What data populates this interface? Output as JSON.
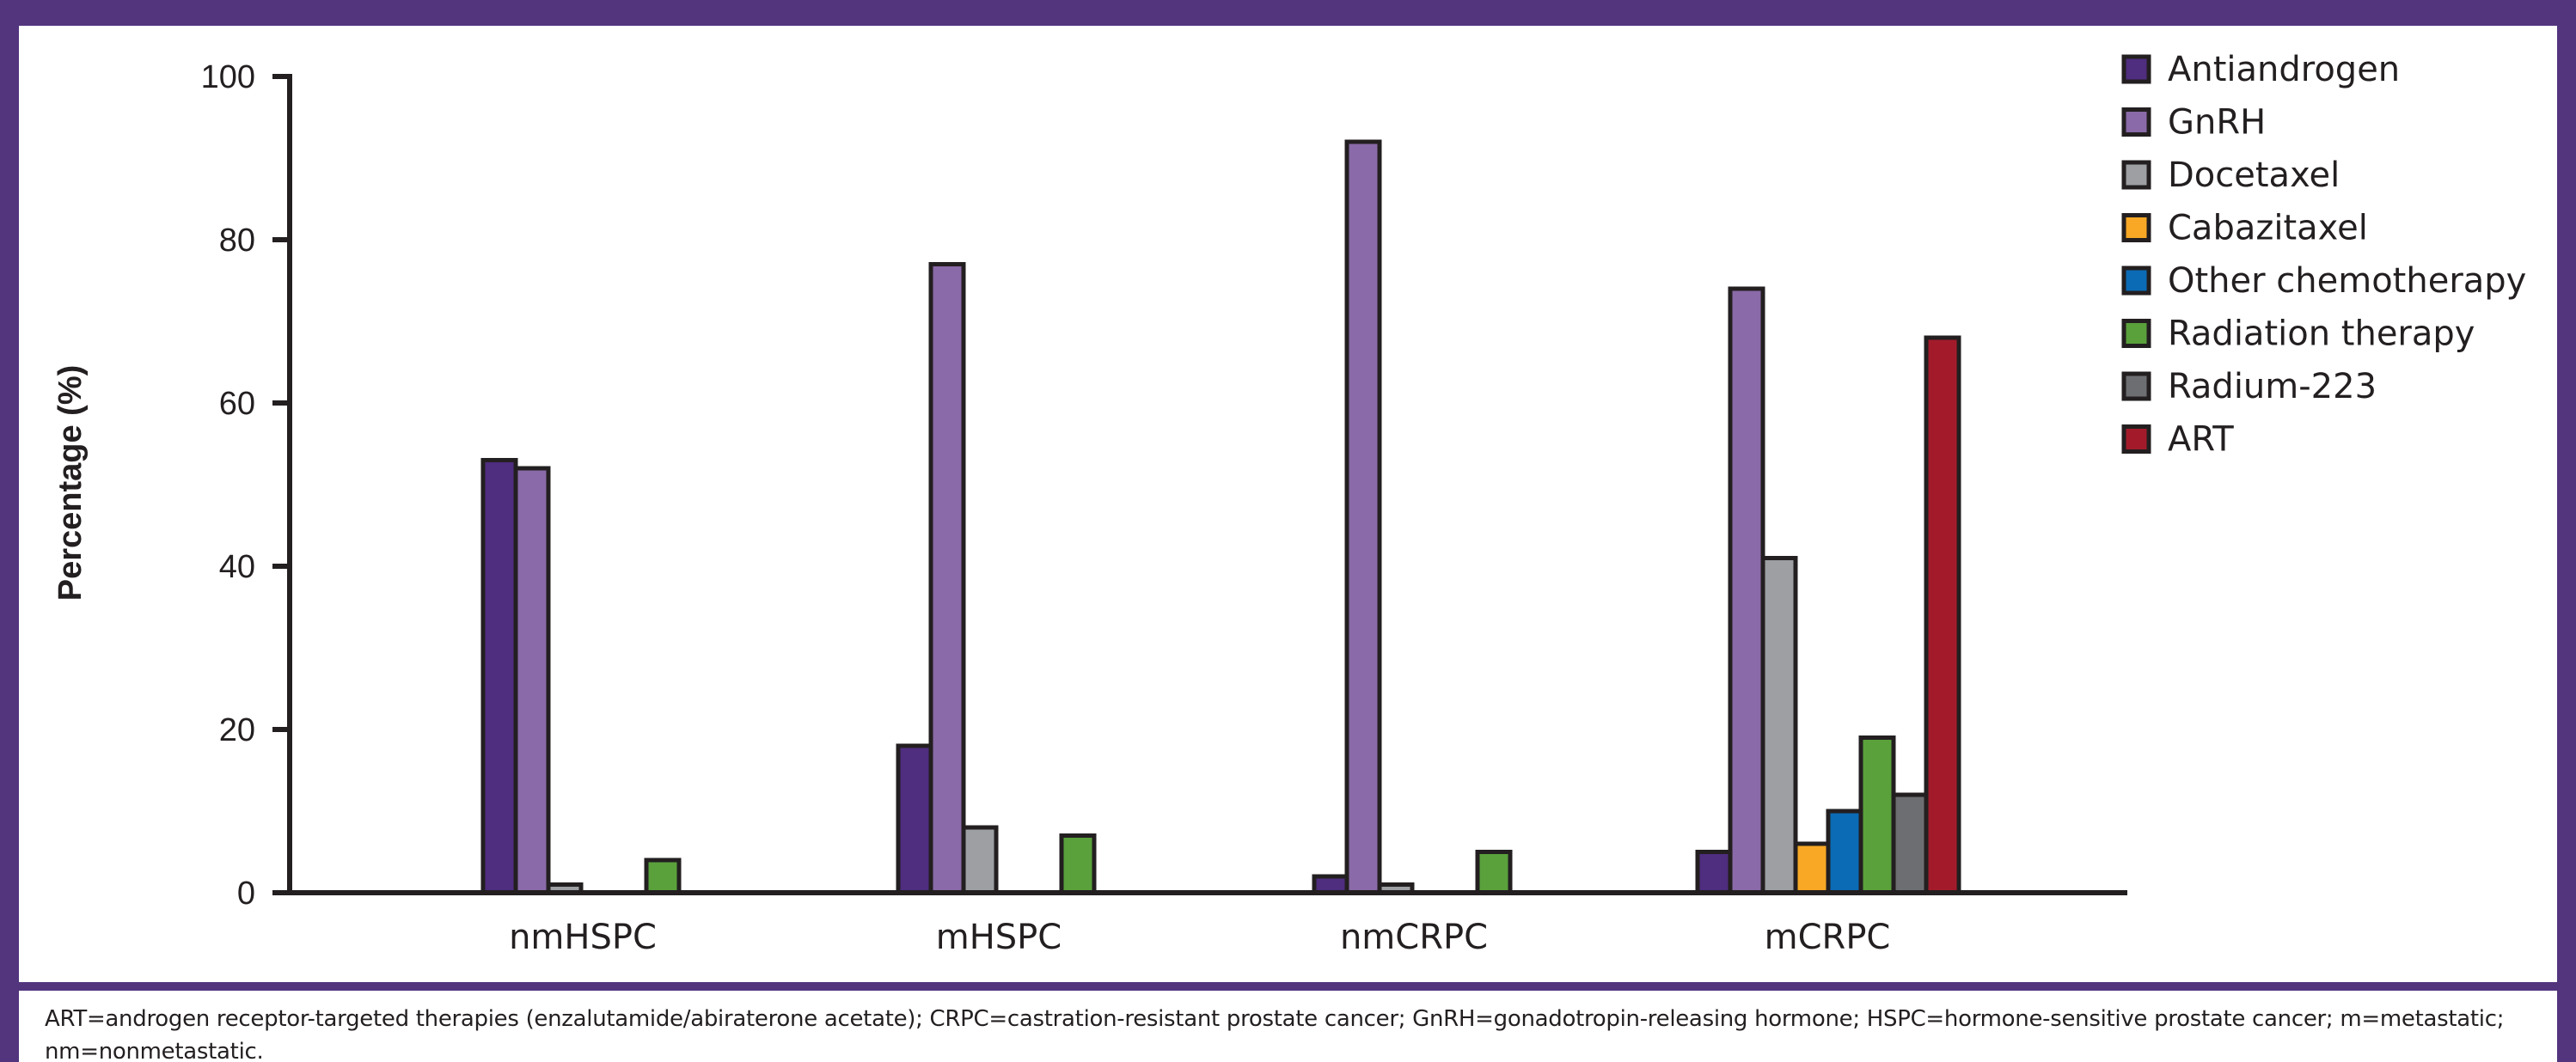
{
  "header": {
    "title": ""
  },
  "footnote": "ART=androgen receptor-targeted therapies (enzalutamide/abiraterone acetate); CRPC=castration-resistant prostate cancer; GnRH=gonadotropin-releasing hormone; HSPC=hormone-sensitive prostate cancer; m=metastatic; nm=nonmetastatic.",
  "chart_data": {
    "type": "bar",
    "title": "",
    "xlabel": "",
    "ylabel": "Percentage (%)",
    "ylim": [
      0,
      100
    ],
    "yticks": [
      "0",
      "20",
      "40",
      "60",
      "80",
      "100"
    ],
    "grid": false,
    "legend_position": "top-right",
    "categories": [
      "nmHSPC",
      "mHSPC",
      "nmCRPC",
      "mCRPC"
    ],
    "series": [
      {
        "name": "Antiandrogen",
        "color": "#4f2d7f",
        "values": [
          53,
          18,
          2,
          5
        ]
      },
      {
        "name": "GnRH",
        "color": "#8a6aa8",
        "values": [
          52,
          77,
          92,
          74
        ]
      },
      {
        "name": "Docetaxel",
        "color": "#9d9fa2",
        "values": [
          1,
          8,
          1,
          41
        ]
      },
      {
        "name": "Cabazitaxel",
        "color": "#f9a825",
        "values": [
          0,
          0,
          0,
          6
        ]
      },
      {
        "name": "Other chemotherapy",
        "color": "#0b6bb5",
        "values": [
          0,
          0,
          0,
          10
        ]
      },
      {
        "name": "Radiation therapy",
        "color": "#5aa13c",
        "values": [
          4,
          7,
          5,
          19
        ]
      },
      {
        "name": "Radium-223",
        "color": "#6d6e71",
        "values": [
          0,
          0,
          0,
          12
        ]
      },
      {
        "name": "ART",
        "color": "#a31b2b",
        "values": [
          0,
          0,
          0,
          68
        ]
      }
    ]
  }
}
